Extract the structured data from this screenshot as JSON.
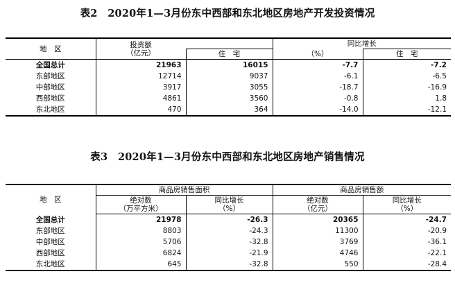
{
  "table2": {
    "title": "表2　2020年1—3月份东中西部和东北地区房地产开发投资情况",
    "header": {
      "region": "地　区",
      "investment_line1": "投资额",
      "investment_line2": "（亿元）",
      "residential": "住　宅",
      "yoy_line1": "同比增长",
      "yoy_line2": "（%）",
      "yoy_residential": "住　宅"
    },
    "rows": [
      {
        "region": "全国总计",
        "investment": "21963",
        "residential": "16015",
        "yoy": "-7.7",
        "yoy_residential": "-7.2"
      },
      {
        "region": "东部地区",
        "investment": "12714",
        "residential": "9037",
        "yoy": "-6.1",
        "yoy_residential": "-6.5"
      },
      {
        "region": "中部地区",
        "investment": "3917",
        "residential": "3055",
        "yoy": "-18.7",
        "yoy_residential": "-16.9"
      },
      {
        "region": "西部地区",
        "investment": "4861",
        "residential": "3560",
        "yoy": "-0.8",
        "yoy_residential": "1.8"
      },
      {
        "region": "东北地区",
        "investment": "470",
        "residential": "364",
        "yoy": "-14.0",
        "yoy_residential": "-12.1"
      }
    ]
  },
  "table3": {
    "title": "表3　2020年1—3月份东中西部和东北地区房地产销售情况",
    "header": {
      "region": "地　区",
      "area_group": "商品房销售面积",
      "sales_group": "商品房销售额",
      "area_abs_line1": "绝对数",
      "area_abs_line2": "（万平方米）",
      "area_yoy_line1": "同比增长",
      "area_yoy_line2": "（%）",
      "sales_abs_line1": "绝对数",
      "sales_abs_line2": "（亿元）",
      "sales_yoy_line1": "同比增长",
      "sales_yoy_line2": "（%）"
    },
    "rows": [
      {
        "region": "全国总计",
        "area": "21978",
        "area_yoy": "-26.3",
        "sales": "20365",
        "sales_yoy": "-24.7"
      },
      {
        "region": "东部地区",
        "area": "8803",
        "area_yoy": "-24.3",
        "sales": "11300",
        "sales_yoy": "-20.9"
      },
      {
        "region": "中部地区",
        "area": "5706",
        "area_yoy": "-32.8",
        "sales": "3769",
        "sales_yoy": "-36.1"
      },
      {
        "region": "西部地区",
        "area": "6824",
        "area_yoy": "-21.9",
        "sales": "4746",
        "sales_yoy": "-22.1"
      },
      {
        "region": "东北地区",
        "area": "645",
        "area_yoy": "-32.8",
        "sales": "550",
        "sales_yoy": "-28.4"
      }
    ]
  }
}
